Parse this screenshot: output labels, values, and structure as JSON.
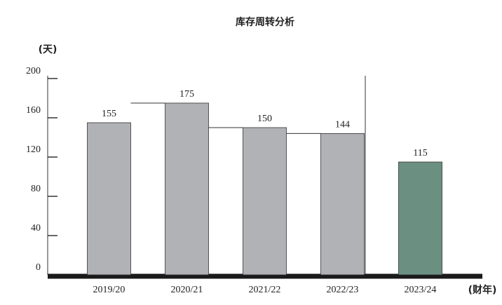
{
  "chart_data": {
    "type": "bar",
    "title": "库存周转分析",
    "y_label": "(天)",
    "x_label": "(财年)",
    "categories": [
      "2019/20",
      "2020/21",
      "2021/22",
      "2022/23",
      "2023/24"
    ],
    "values": [
      155,
      175,
      150,
      144,
      115
    ],
    "colors": [
      "#b1b2b5",
      "#b1b2b5",
      "#b1b2b5",
      "#b1b2b5",
      "#6b8f81"
    ],
    "ylim": [
      0,
      200
    ],
    "yticks": [
      0,
      40,
      80,
      120,
      160,
      200
    ]
  }
}
